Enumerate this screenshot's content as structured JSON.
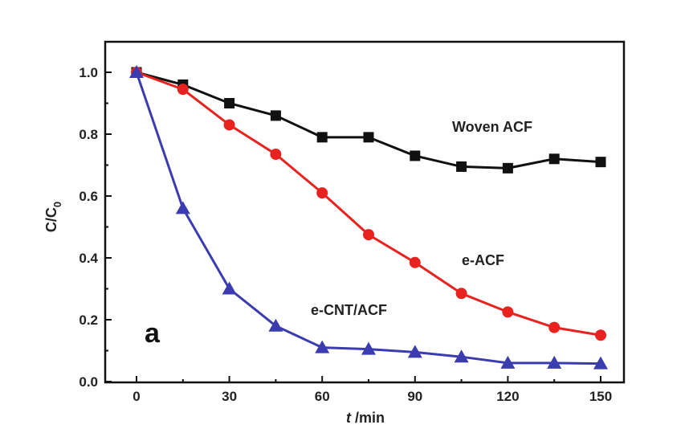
{
  "chart_data": {
    "type": "line",
    "title": "",
    "xlabel_italic": "t",
    "xlabel_rest": " /min",
    "ylabel_main": "C/C",
    "ylabel_sub": "0",
    "panel_label": "a",
    "xlim": [
      -12,
      159
    ],
    "ylim": [
      0,
      1.08
    ],
    "xticks": [
      0,
      30,
      60,
      90,
      120,
      150
    ],
    "xtick_labels": [
      "0",
      "30",
      "60",
      "90",
      "120",
      "150"
    ],
    "yticks": [
      0.0,
      0.2,
      0.4,
      0.6,
      0.8,
      1.0
    ],
    "ytick_labels": [
      "0.0",
      "0.2",
      "0.4",
      "0.6",
      "0.8",
      "1.0"
    ],
    "x": [
      0,
      15,
      30,
      45,
      60,
      75,
      90,
      105,
      120,
      135,
      150
    ],
    "series": [
      {
        "name": "Woven ACF",
        "color": "#111111",
        "marker": "square",
        "values": [
          1.0,
          0.96,
          0.9,
          0.86,
          0.79,
          0.79,
          0.73,
          0.695,
          0.69,
          0.72,
          0.71
        ]
      },
      {
        "name": "e-ACF",
        "color": "#e8231f",
        "marker": "circle",
        "values": [
          1.0,
          0.945,
          0.83,
          0.735,
          0.61,
          0.475,
          0.385,
          0.285,
          0.225,
          0.175,
          0.15
        ]
      },
      {
        "name": "e-CNT/ACF",
        "color": "#3a3cb0",
        "marker": "triangle",
        "values": [
          1.0,
          0.56,
          0.3,
          0.18,
          0.11,
          0.105,
          0.095,
          0.08,
          0.06,
          0.06,
          0.058
        ]
      }
    ]
  }
}
